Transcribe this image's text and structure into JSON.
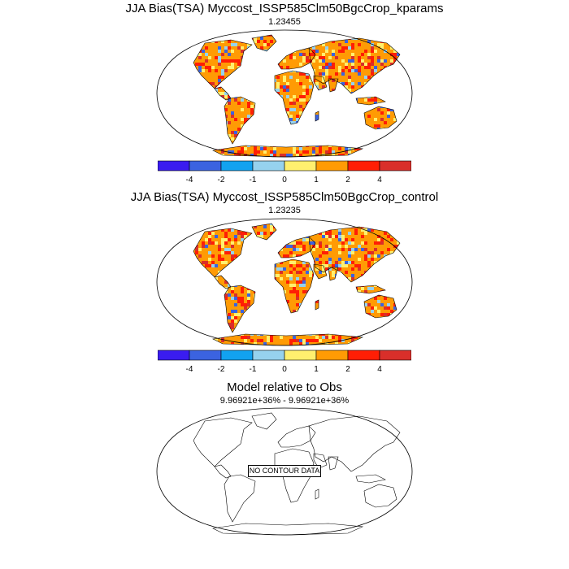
{
  "panels": [
    {
      "title": "JJA Bias(TSA) Myccost_ISSP585Clm50BgcCrop_kparams",
      "subtitle": "1.23455"
    },
    {
      "title": "JJA Bias(TSA) Myccost_ISSP585Clm50BgcCrop_control",
      "subtitle": "1.23235"
    },
    {
      "title": "Model relative to Obs",
      "subtitle": "9.96921e+36% - 9.96921e+36%",
      "message": "NO CONTOUR DATA"
    }
  ],
  "colorbar": {
    "labels": [
      "-4",
      "-2",
      "-1",
      "0",
      "1",
      "2",
      "4"
    ],
    "colors": [
      "#3a1cf0",
      "#3b63e0",
      "#12a2f0",
      "#96d2ee",
      "#fff06e",
      "#ff9b04",
      "#ff1e05",
      "#d92f2a"
    ]
  },
  "map_colors": {
    "ocean": "#ffffff",
    "dominant_land": "#ff9b04",
    "hot": "#ff1e05",
    "warm": "#fff06e",
    "cool": "#96d2ee",
    "cold": "#3b63e0"
  }
}
